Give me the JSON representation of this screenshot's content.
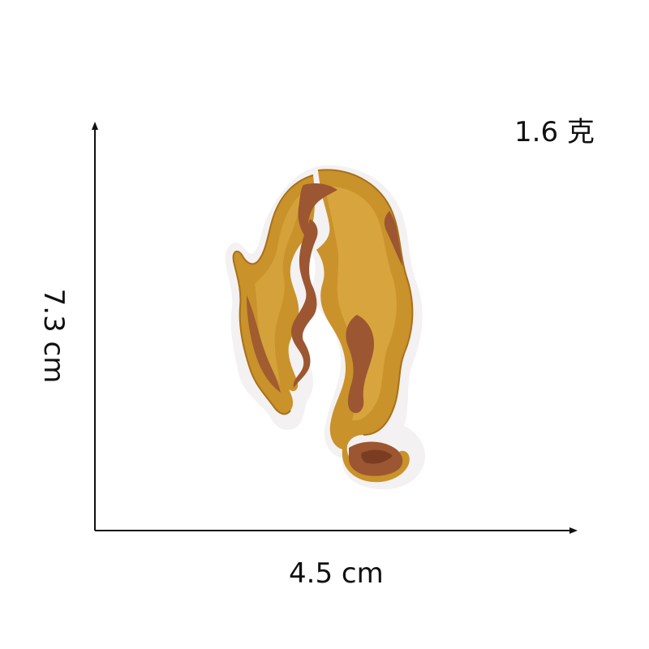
{
  "labels": {
    "weight": "1.6 克",
    "width": "4.5 cm",
    "height": "7.3 cm"
  },
  "image": {
    "subject": "embroidered-hair-patch-icon"
  },
  "colors": {
    "axis": "#111111",
    "backing": "#f3f1f2",
    "gold": "#c9922a",
    "gold_light": "#dca944",
    "copper": "#9c5631",
    "copper_dark": "#7a3d22"
  }
}
